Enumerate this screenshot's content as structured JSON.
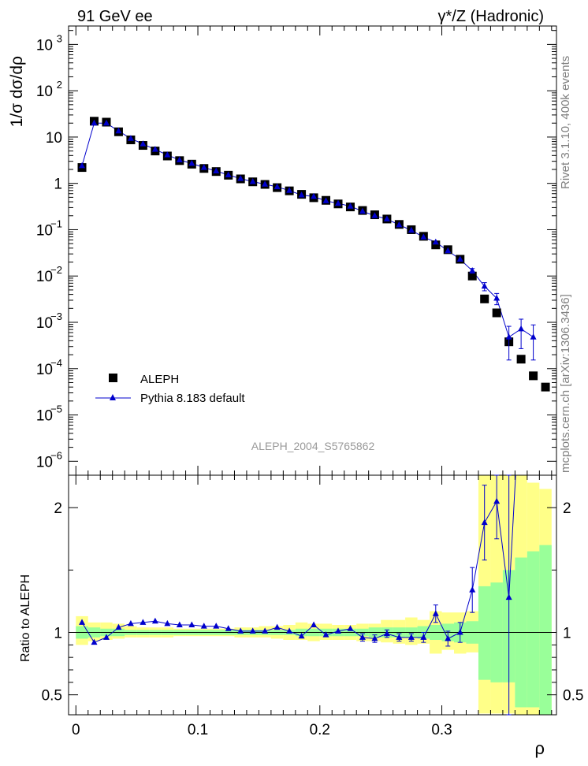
{
  "header": {
    "left_title": "91 GeV ee",
    "right_title": "γ*/Z (Hadronic)"
  },
  "side_labels": {
    "rivet": "Rivet 3.1.10,  400k events",
    "mcplots": "mcplots.cern.ch [arXiv:1306.3436]"
  },
  "watermark": "ALEPH_2004_S5765862",
  "colors": {
    "data": "#000000",
    "mc": "#0000cc",
    "band_inner": "#99ff99",
    "band_outer": "#ffff88"
  },
  "chart_data": [
    {
      "type": "scatter",
      "ylabel": "1/σ  dσ/dρ",
      "yscale": "log",
      "ylim": [
        5e-07,
        2500
      ],
      "xlim": [
        -0.006,
        0.394
      ],
      "yticks": [
        {
          "value": 1e-06,
          "base": "10",
          "exp": "−6"
        },
        {
          "value": 1e-05,
          "base": "10",
          "exp": "−5"
        },
        {
          "value": 0.0001,
          "base": "10",
          "exp": "−4"
        },
        {
          "value": 0.001,
          "base": "10",
          "exp": "−3"
        },
        {
          "value": 0.01,
          "base": "10",
          "exp": "−2"
        },
        {
          "value": 0.1,
          "base": "10",
          "exp": "−1"
        },
        {
          "value": 1,
          "base": "1",
          "exp": ""
        },
        {
          "value": 10,
          "base": "10",
          "exp": ""
        },
        {
          "value": 100,
          "base": "10",
          "exp": "2"
        },
        {
          "value": 1000,
          "base": "10",
          "exp": "3"
        }
      ],
      "legend": {
        "position": "bottom-left",
        "entries": [
          "ALEPH",
          "Pythia 8.183 default"
        ]
      },
      "series": [
        {
          "name": "ALEPH",
          "marker": "square",
          "x": [
            0.005,
            0.015,
            0.025,
            0.035,
            0.045,
            0.055,
            0.065,
            0.075,
            0.085,
            0.095,
            0.105,
            0.115,
            0.125,
            0.135,
            0.145,
            0.155,
            0.165,
            0.175,
            0.185,
            0.195,
            0.205,
            0.215,
            0.225,
            0.235,
            0.245,
            0.255,
            0.265,
            0.275,
            0.285,
            0.295,
            0.305,
            0.315,
            0.325,
            0.335,
            0.345,
            0.355,
            0.365,
            0.375,
            0.385
          ],
          "y": [
            2.2,
            22,
            21,
            13,
            8.7,
            6.6,
            5.0,
            3.9,
            3.1,
            2.6,
            2.1,
            1.8,
            1.5,
            1.25,
            1.08,
            0.95,
            0.81,
            0.69,
            0.58,
            0.49,
            0.43,
            0.36,
            0.31,
            0.26,
            0.21,
            0.17,
            0.13,
            0.1,
            0.072,
            0.047,
            0.037,
            0.023,
            0.01,
            0.0032,
            0.0016,
            0.00038,
            0.00016,
            7e-05,
            4e-05
          ]
        },
        {
          "name": "Pythia 8.183 default",
          "marker": "triangle",
          "x": [
            0.005,
            0.015,
            0.025,
            0.035,
            0.045,
            0.055,
            0.065,
            0.075,
            0.085,
            0.095,
            0.105,
            0.115,
            0.125,
            0.135,
            0.145,
            0.155,
            0.165,
            0.175,
            0.185,
            0.195,
            0.205,
            0.215,
            0.225,
            0.235,
            0.245,
            0.255,
            0.265,
            0.275,
            0.285,
            0.295,
            0.305,
            0.315,
            0.325,
            0.335,
            0.345,
            0.355,
            0.365,
            0.375
          ],
          "y": [
            2.4,
            20,
            20,
            13.5,
            9.3,
            7.1,
            5.4,
            4.1,
            3.2,
            2.7,
            2.2,
            1.85,
            1.52,
            1.27,
            1.09,
            0.96,
            0.84,
            0.7,
            0.56,
            0.52,
            0.42,
            0.37,
            0.32,
            0.25,
            0.2,
            0.17,
            0.127,
            0.097,
            0.069,
            0.054,
            0.035,
            0.023,
            0.013,
            0.006,
            0.0033,
            0.00048,
            0.00072,
            0.00048
          ]
        }
      ]
    },
    {
      "type": "line",
      "ylabel": "Ratio to ALEPH",
      "xlabel": "ρ",
      "xlim": [
        -0.006,
        0.394
      ],
      "ylim": [
        0.34,
        2.26
      ],
      "xticks": [
        {
          "value": 0,
          "label": "0"
        },
        {
          "value": 0.1,
          "label": "0.1"
        },
        {
          "value": 0.2,
          "label": "0.2"
        },
        {
          "value": 0.3,
          "label": "0.3"
        }
      ],
      "yticks": [
        {
          "value": 0.5,
          "label": "0.5"
        },
        {
          "value": 1,
          "label": "1"
        },
        {
          "value": 2,
          "label": "2"
        }
      ],
      "band_edges": [
        0.0,
        0.01,
        0.02,
        0.03,
        0.04,
        0.05,
        0.06,
        0.07,
        0.08,
        0.09,
        0.1,
        0.11,
        0.12,
        0.13,
        0.14,
        0.15,
        0.16,
        0.17,
        0.18,
        0.19,
        0.2,
        0.21,
        0.22,
        0.23,
        0.24,
        0.25,
        0.26,
        0.27,
        0.28,
        0.29,
        0.3,
        0.31,
        0.32,
        0.33,
        0.34,
        0.35,
        0.36,
        0.37,
        0.38,
        0.39
      ],
      "band_inner": [
        [
          0.95,
          1.05
        ],
        [
          0.96,
          1.04
        ],
        [
          0.97,
          1.03
        ],
        [
          0.97,
          1.03
        ],
        [
          0.98,
          1.02
        ],
        [
          0.98,
          1.02
        ],
        [
          0.98,
          1.02
        ],
        [
          0.98,
          1.02
        ],
        [
          0.98,
          1.02
        ],
        [
          0.98,
          1.02
        ],
        [
          0.98,
          1.02
        ],
        [
          0.98,
          1.02
        ],
        [
          0.98,
          1.02
        ],
        [
          0.98,
          1.02
        ],
        [
          0.98,
          1.02
        ],
        [
          0.98,
          1.02
        ],
        [
          0.98,
          1.02
        ],
        [
          0.98,
          1.02
        ],
        [
          0.97,
          1.03
        ],
        [
          0.97,
          1.03
        ],
        [
          0.97,
          1.03
        ],
        [
          0.97,
          1.03
        ],
        [
          0.97,
          1.03
        ],
        [
          0.97,
          1.03
        ],
        [
          0.96,
          1.04
        ],
        [
          0.96,
          1.04
        ],
        [
          0.96,
          1.04
        ],
        [
          0.96,
          1.04
        ],
        [
          0.95,
          1.05
        ],
        [
          0.94,
          1.06
        ],
        [
          0.93,
          1.07
        ],
        [
          0.92,
          1.08
        ],
        [
          0.91,
          1.09
        ],
        [
          0.62,
          1.37
        ],
        [
          0.6,
          1.4
        ],
        [
          0.6,
          1.5
        ],
        [
          0.4,
          1.6
        ],
        [
          0.4,
          1.65
        ],
        [
          0.3,
          1.7
        ]
      ],
      "band_outer": [
        [
          0.9,
          1.13
        ],
        [
          0.93,
          1.08
        ],
        [
          0.94,
          1.08
        ],
        [
          0.95,
          1.07
        ],
        [
          0.96,
          1.05
        ],
        [
          0.96,
          1.04
        ],
        [
          0.96,
          1.04
        ],
        [
          0.96,
          1.04
        ],
        [
          0.97,
          1.03
        ],
        [
          0.97,
          1.03
        ],
        [
          0.97,
          1.03
        ],
        [
          0.97,
          1.03
        ],
        [
          0.97,
          1.03
        ],
        [
          0.96,
          1.04
        ],
        [
          0.96,
          1.04
        ],
        [
          0.96,
          1.05
        ],
        [
          0.95,
          1.05
        ],
        [
          0.94,
          1.06
        ],
        [
          0.94,
          1.08
        ],
        [
          0.93,
          1.07
        ],
        [
          0.94,
          1.07
        ],
        [
          0.94,
          1.06
        ],
        [
          0.94,
          1.06
        ],
        [
          0.93,
          1.07
        ],
        [
          0.93,
          1.07
        ],
        [
          0.92,
          1.1
        ],
        [
          0.91,
          1.1
        ],
        [
          0.9,
          1.12
        ],
        [
          0.91,
          1.1
        ],
        [
          0.83,
          1.17
        ],
        [
          0.86,
          1.16
        ],
        [
          0.83,
          1.16
        ],
        [
          0.84,
          1.17
        ],
        [
          0.35,
          2.4
        ],
        [
          0.35,
          2.4
        ],
        [
          0.35,
          2.4
        ],
        [
          0.3,
          2.26
        ],
        [
          0.3,
          2.2
        ],
        [
          0.3,
          2.15
        ]
      ],
      "series": [
        {
          "name": "Pythia 8.183 default",
          "x": [
            0.005,
            0.015,
            0.025,
            0.035,
            0.045,
            0.055,
            0.065,
            0.075,
            0.085,
            0.095,
            0.105,
            0.115,
            0.125,
            0.135,
            0.145,
            0.155,
            0.165,
            0.175,
            0.185,
            0.195,
            0.205,
            0.215,
            0.225,
            0.235,
            0.245,
            0.255,
            0.265,
            0.275,
            0.285,
            0.295,
            0.305,
            0.315,
            0.325,
            0.335,
            0.345,
            0.355
          ],
          "y": [
            1.08,
            0.92,
            0.96,
            1.04,
            1.07,
            1.08,
            1.09,
            1.07,
            1.06,
            1.06,
            1.05,
            1.05,
            1.03,
            1.01,
            1.01,
            1.01,
            1.04,
            1.01,
            0.97,
            1.06,
            0.98,
            1.01,
            1.03,
            0.96,
            0.95,
            0.99,
            0.96,
            0.96,
            0.96,
            1.15,
            0.95,
            1.0,
            1.34,
            1.88,
            2.05,
            1.28
          ],
          "err": [
            0.02,
            0.01,
            0.01,
            0.01,
            0.01,
            0.01,
            0.01,
            0.01,
            0.01,
            0.01,
            0.01,
            0.01,
            0.01,
            0.01,
            0.01,
            0.01,
            0.01,
            0.01,
            0.01,
            0.01,
            0.01,
            0.01,
            0.02,
            0.03,
            0.03,
            0.03,
            0.03,
            0.03,
            0.04,
            0.07,
            0.06,
            0.08,
            0.18,
            0.3,
            0.3,
            1.0
          ]
        }
      ]
    }
  ]
}
